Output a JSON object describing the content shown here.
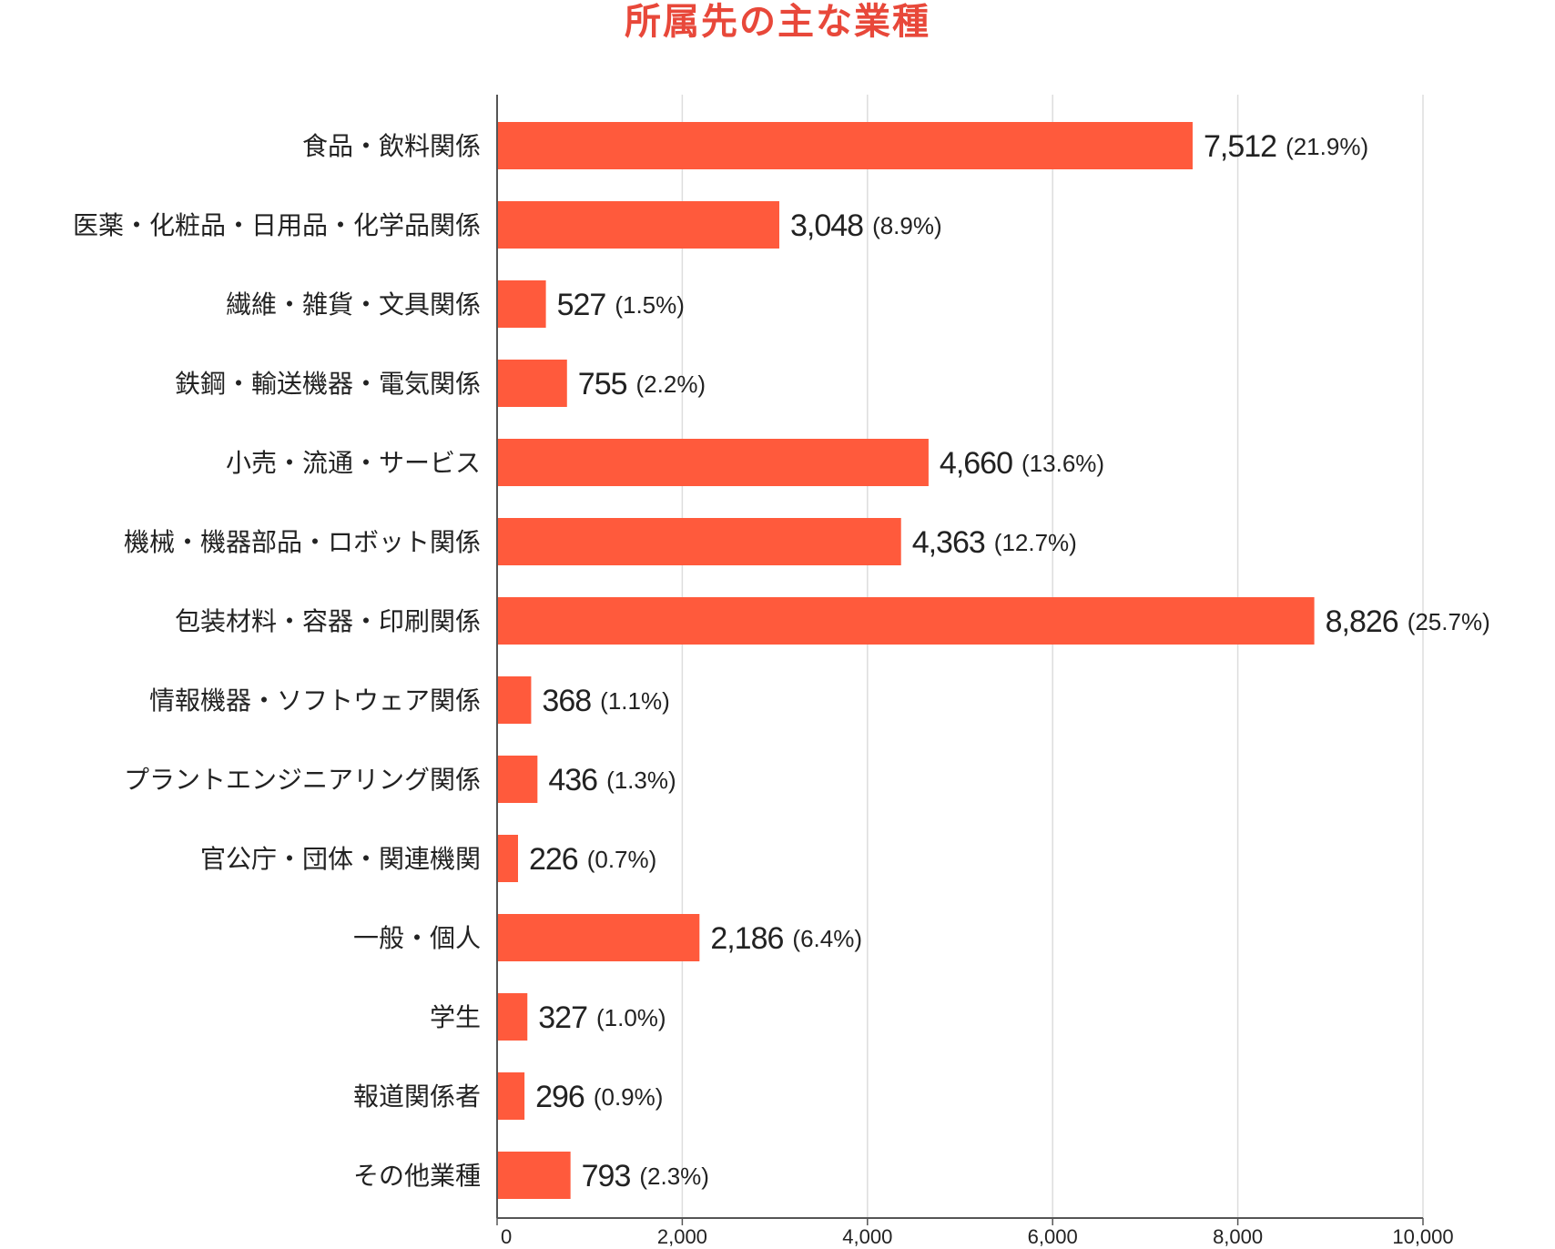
{
  "chart_data": {
    "type": "bar",
    "orientation": "horizontal",
    "title": "所属先の主な業種",
    "categories": [
      "食品・飲料関係",
      "医薬・化粧品・日用品・化学品関係",
      "繊維・雑貨・文具関係",
      "鉄鋼・輸送機器・電気関係",
      "小売・流通・サービス",
      "機械・機器部品・ロボット関係",
      "包装材料・容器・印刷関係",
      "情報機器・ソフトウェア関係",
      "プラントエンジニアリング関係",
      "官公庁・団体・関連機関",
      "一般・個人",
      "学生",
      "報道関係者",
      "その他業種"
    ],
    "values": [
      7512,
      3048,
      527,
      755,
      4660,
      4363,
      8826,
      368,
      436,
      226,
      2186,
      327,
      296,
      793
    ],
    "value_labels": [
      "7,512",
      "3,048",
      "527",
      "755",
      "4,660",
      "4,363",
      "8,826",
      "368",
      "436",
      "226",
      "2,186",
      "327",
      "296",
      "793"
    ],
    "percent_labels": [
      "(21.9%)",
      "(8.9%)",
      "(1.5%)",
      "(2.2%)",
      "(13.6%)",
      "(12.7%)",
      "(25.7%)",
      "(1.1%)",
      "(1.3%)",
      "(0.7%)",
      "(6.4%)",
      "(1.0%)",
      "(0.9%)",
      "(2.3%)"
    ],
    "xlim": [
      0,
      10000
    ],
    "xticks": [
      0,
      2000,
      4000,
      6000,
      8000,
      10000
    ],
    "xtick_labels": [
      "0",
      "2,000",
      "4,000",
      "6,000",
      "8,000",
      "10,000"
    ],
    "grid": true,
    "bar_color": "#ff5a3c",
    "title_color": "#e8483a",
    "grid_color": "#dddddd"
  }
}
